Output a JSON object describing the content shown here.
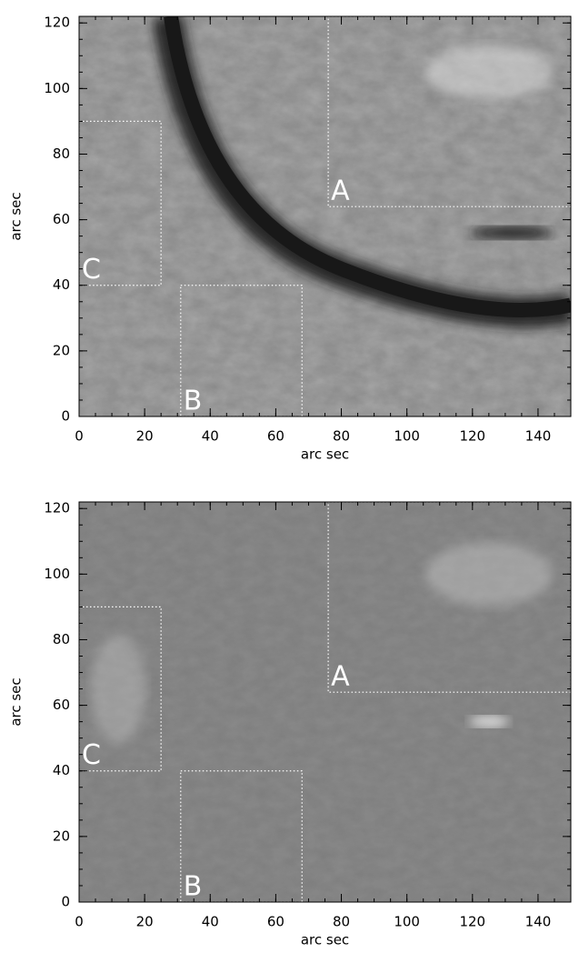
{
  "chart_data": [
    {
      "type": "image",
      "xlabel": "arc sec",
      "ylabel": "arc sec",
      "xlim": [
        0,
        150
      ],
      "ylim": [
        0,
        122
      ],
      "xticks": [
        0,
        20,
        40,
        60,
        80,
        100,
        120,
        140
      ],
      "yticks": [
        0,
        20,
        40,
        60,
        80,
        100,
        120
      ],
      "regions": [
        {
          "label": "A",
          "x": [
            76,
            150
          ],
          "y": [
            64,
            122
          ]
        },
        {
          "label": "B",
          "x": [
            31,
            68
          ],
          "y": [
            0,
            40
          ]
        },
        {
          "label": "C",
          "x": [
            0,
            25
          ],
          "y": [
            40,
            90
          ]
        }
      ]
    },
    {
      "type": "image",
      "xlabel": "arc sec",
      "ylabel": "arc sec",
      "xlim": [
        0,
        150
      ],
      "ylim": [
        0,
        122
      ],
      "xticks": [
        0,
        20,
        40,
        60,
        80,
        100,
        120,
        140
      ],
      "yticks": [
        0,
        20,
        40,
        60,
        80,
        100,
        120
      ],
      "regions": [
        {
          "label": "A",
          "x": [
            76,
            150
          ],
          "y": [
            64,
            122
          ]
        },
        {
          "label": "B",
          "x": [
            31,
            68
          ],
          "y": [
            0,
            40
          ]
        },
        {
          "label": "C",
          "x": [
            0,
            25
          ],
          "y": [
            40,
            90
          ]
        }
      ]
    }
  ]
}
